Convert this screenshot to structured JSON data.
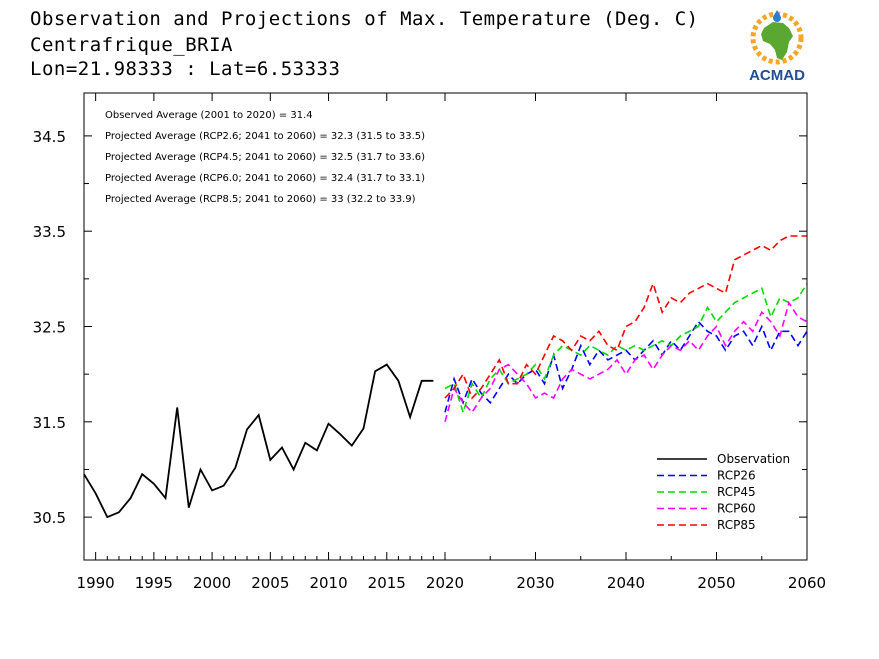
{
  "header": {
    "title": "Observation and Projections of Max. Temperature (Deg. C)",
    "location": "Centrafrique_BRIA",
    "coords": "Lon=21.98333 : Lat=6.53333"
  },
  "logo": {
    "text": "ACMAD",
    "icon": "africa-map-sun-icon",
    "colors": {
      "sun": "#f5a623",
      "africa": "#5aa832",
      "text": "#1f4e9a"
    }
  },
  "chart_data": {
    "type": "line",
    "title": "Observation and Projections of Max. Temperature (Deg. C)",
    "xlim": [
      1989,
      2060
    ],
    "ylim": [
      30.05,
      34.95
    ],
    "yticks": [
      30.5,
      31.5,
      32.5,
      33.5,
      34.5
    ],
    "ytick_labels": [
      "30.5",
      "31.5",
      "32.5",
      "33.5",
      "34.5"
    ],
    "xticks_obs": [
      1990,
      1995,
      2000,
      2005,
      2010,
      2015,
      2020
    ],
    "xticks_proj": [
      2030,
      2040,
      2050,
      2060
    ],
    "xtick_labels": [
      "1990",
      "1995",
      "2000",
      "2005",
      "2010",
      "2015",
      "2020",
      "2030",
      "2040",
      "2050",
      "2060"
    ],
    "annotations": [
      "Observed Average (2001 to 2020) = 31.4",
      "Projected Average (RCP2.6; 2041 to 2060) = 32.3 (31.5 to 33.5)",
      "Projected Average (RCP4.5; 2041 to 2060) = 32.5 (31.7 to 33.6)",
      "Projected Average (RCP6.0; 2041 to 2060) = 32.4 (31.7 to 33.1)",
      "Projected Average (RCP8.5; 2041 to 2060) = 33 (32.2 to 33.9)"
    ],
    "legend_position": "bottom-right",
    "observation": {
      "name": "Observation",
      "color": "#000000",
      "x": [
        1989,
        1990,
        1991,
        1992,
        1993,
        1994,
        1995,
        1996,
        1997,
        1998,
        1999,
        2000,
        2001,
        2002,
        2003,
        2004,
        2005,
        2006,
        2007,
        2008,
        2009,
        2010,
        2011,
        2012,
        2013,
        2014,
        2015,
        2016,
        2017,
        2018,
        2019
      ],
      "y": [
        30.95,
        30.75,
        30.5,
        30.55,
        30.7,
        30.95,
        30.85,
        30.7,
        31.65,
        30.6,
        31.0,
        30.78,
        30.83,
        31.02,
        31.42,
        31.57,
        31.1,
        31.23,
        31.0,
        31.28,
        31.2,
        31.48,
        31.37,
        31.25,
        31.43,
        32.03,
        32.1,
        31.93,
        31.55,
        31.93,
        31.93
      ]
    },
    "series": [
      {
        "name": "RCP26",
        "color": "#0000ff",
        "x": [
          2020,
          2021,
          2022,
          2023,
          2024,
          2025,
          2026,
          2027,
          2028,
          2029,
          2030,
          2031,
          2032,
          2033,
          2034,
          2035,
          2036,
          2037,
          2038,
          2039,
          2040,
          2041,
          2042,
          2043,
          2044,
          2045,
          2046,
          2047,
          2048,
          2049,
          2050,
          2051,
          2052,
          2053,
          2054,
          2055,
          2056,
          2057,
          2058,
          2059,
          2060
        ],
        "y": [
          31.6,
          31.95,
          31.7,
          31.95,
          31.8,
          31.7,
          31.85,
          32.0,
          31.9,
          32.0,
          32.05,
          31.9,
          32.2,
          31.85,
          32.05,
          32.3,
          32.1,
          32.25,
          32.15,
          32.2,
          32.25,
          32.15,
          32.25,
          32.35,
          32.2,
          32.35,
          32.25,
          32.4,
          32.55,
          32.45,
          32.4,
          32.25,
          32.4,
          32.45,
          32.3,
          32.5,
          32.25,
          32.45,
          32.45,
          32.3,
          32.45
        ]
      },
      {
        "name": "RCP45",
        "color": "#00dd00",
        "x": [
          2020,
          2021,
          2022,
          2023,
          2024,
          2025,
          2026,
          2027,
          2028,
          2029,
          2030,
          2031,
          2032,
          2033,
          2034,
          2035,
          2036,
          2037,
          2038,
          2039,
          2040,
          2041,
          2042,
          2043,
          2044,
          2045,
          2046,
          2047,
          2048,
          2049,
          2050,
          2051,
          2052,
          2053,
          2054,
          2055,
          2056,
          2057,
          2058,
          2059,
          2060
        ],
        "y": [
          31.85,
          31.9,
          31.6,
          31.9,
          31.75,
          31.95,
          32.05,
          31.9,
          31.95,
          32.0,
          32.1,
          31.95,
          32.2,
          32.3,
          32.25,
          32.2,
          32.3,
          32.25,
          32.2,
          32.3,
          32.25,
          32.3,
          32.25,
          32.3,
          32.35,
          32.3,
          32.4,
          32.45,
          32.5,
          32.7,
          32.55,
          32.65,
          32.75,
          32.8,
          32.85,
          32.9,
          32.6,
          32.8,
          32.75,
          32.8,
          32.95
        ]
      },
      {
        "name": "RCP60",
        "color": "#ff00ff",
        "x": [
          2020,
          2021,
          2022,
          2023,
          2024,
          2025,
          2026,
          2027,
          2028,
          2029,
          2030,
          2031,
          2032,
          2033,
          2034,
          2035,
          2036,
          2037,
          2038,
          2039,
          2040,
          2041,
          2042,
          2043,
          2044,
          2045,
          2046,
          2047,
          2048,
          2049,
          2050,
          2051,
          2052,
          2053,
          2054,
          2055,
          2056,
          2057,
          2058,
          2059,
          2060
        ],
        "y": [
          31.5,
          31.85,
          31.7,
          31.6,
          31.75,
          31.85,
          32.05,
          32.1,
          32.0,
          31.9,
          31.75,
          31.8,
          31.75,
          31.95,
          32.05,
          32.0,
          31.95,
          32.0,
          32.05,
          32.15,
          32.0,
          32.15,
          32.2,
          32.05,
          32.2,
          32.3,
          32.25,
          32.35,
          32.25,
          32.4,
          32.5,
          32.3,
          32.45,
          32.55,
          32.45,
          32.65,
          32.55,
          32.4,
          32.75,
          32.6,
          32.55
        ]
      },
      {
        "name": "RCP85",
        "color": "#ff0000",
        "x": [
          2020,
          2021,
          2022,
          2023,
          2024,
          2025,
          2026,
          2027,
          2028,
          2029,
          2030,
          2031,
          2032,
          2033,
          2034,
          2035,
          2036,
          2037,
          2038,
          2039,
          2040,
          2041,
          2042,
          2043,
          2044,
          2045,
          2046,
          2047,
          2048,
          2049,
          2050,
          2051,
          2052,
          2053,
          2054,
          2055,
          2056,
          2057,
          2058,
          2059,
          2060
        ],
        "y": [
          31.75,
          31.85,
          32.0,
          31.75,
          31.85,
          32.0,
          32.15,
          31.9,
          31.9,
          32.1,
          32.0,
          32.2,
          32.4,
          32.35,
          32.25,
          32.4,
          32.35,
          32.45,
          32.3,
          32.25,
          32.5,
          32.55,
          32.7,
          32.95,
          32.65,
          32.8,
          32.75,
          32.85,
          32.9,
          32.95,
          32.9,
          32.85,
          33.2,
          33.25,
          33.3,
          33.35,
          33.3,
          33.4,
          33.45,
          33.45,
          33.45
        ]
      }
    ]
  }
}
